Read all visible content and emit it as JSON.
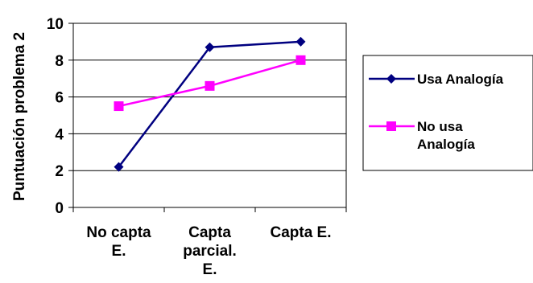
{
  "chart_data": {
    "type": "line",
    "categories": [
      [
        "No capta",
        "E."
      ],
      [
        "Capta",
        "parcial.",
        "E."
      ],
      [
        "Capta E."
      ]
    ],
    "ylabel": "Puntuación problema 2",
    "ylim": [
      0,
      10
    ],
    "yticks": [
      "0",
      "2",
      "4",
      "6",
      "8",
      "10"
    ],
    "grid": true,
    "legend_position": "right",
    "series": [
      {
        "name": "Usa Analogía",
        "legend_lines": [
          "Usa Analogía"
        ],
        "color": "#000080",
        "marker": "diamond",
        "values": [
          2.2,
          8.7,
          9.0
        ]
      },
      {
        "name": "No usa Analogía",
        "legend_lines": [
          "No usa",
          "Analogía"
        ],
        "color": "#ff00ff",
        "marker": "square",
        "values": [
          5.5,
          6.6,
          8.0
        ]
      }
    ]
  }
}
